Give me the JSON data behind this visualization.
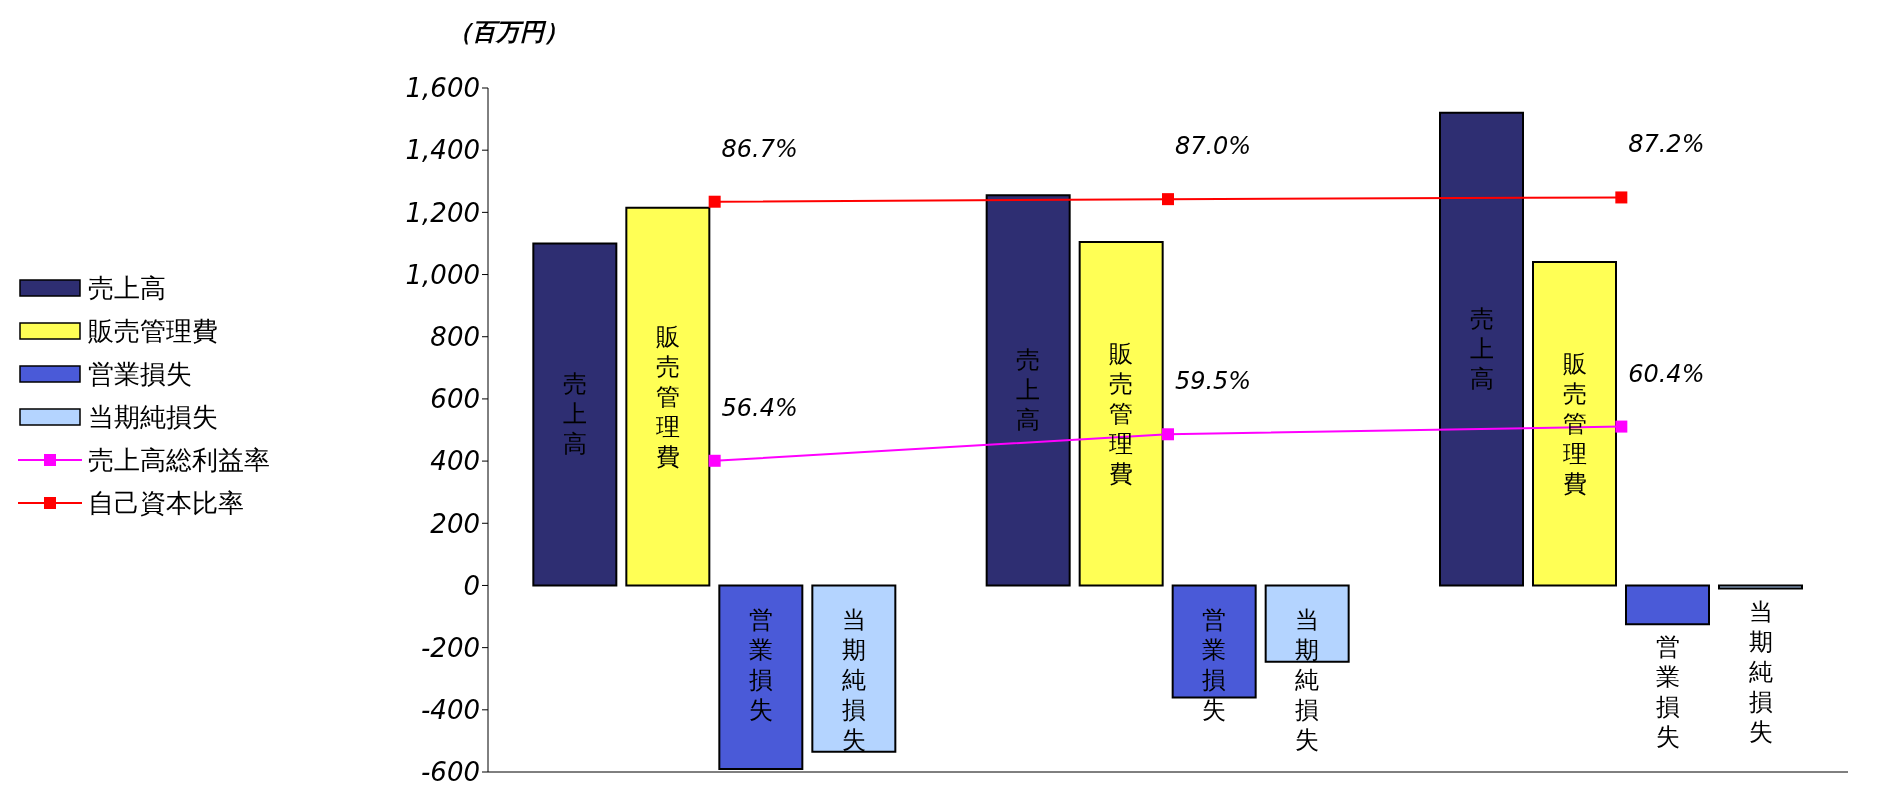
{
  "chart_data": {
    "type": "bar",
    "ylabel": "（百万円）",
    "categories": [
      null,
      null,
      null
    ],
    "series": [
      {
        "name": "売上高",
        "color": "#2e2e72",
        "values": [
          1100,
          1255,
          1520
        ]
      },
      {
        "name": "販売管理費",
        "color": "#ffff55",
        "values": [
          1215,
          1105,
          1040
        ]
      },
      {
        "name": "営業損失",
        "color": "#4a5ad8",
        "values": [
          -590,
          -360,
          -125
        ]
      },
      {
        "name": "当期純損失",
        "color": "#b4d4ff",
        "values": [
          -535,
          -245,
          -10
        ]
      },
      {
        "name": "売上高総利益率",
        "type": "line",
        "axis": "y2",
        "color": "#ff00ff",
        "values": [
          56.4,
          59.5,
          60.4
        ],
        "value_labels": [
          "56.4%",
          "59.5%",
          "60.4%"
        ]
      },
      {
        "name": "自己資本比率",
        "type": "line",
        "axis": "y2",
        "color": "#ff0000",
        "values": [
          86.7,
          87.0,
          87.2
        ],
        "value_labels": [
          "86.7%",
          "87.0%",
          "87.2%"
        ]
      }
    ],
    "ylim": [
      -600,
      1600
    ],
    "yticks": [
      {
        "value": -600,
        "label": "-600"
      },
      {
        "value": -400,
        "label": "-400"
      },
      {
        "value": -200,
        "label": "-200"
      },
      0,
      200,
      400,
      600,
      800,
      {
        "value": 1000,
        "label": "1,000"
      },
      {
        "value": 1200,
        "label": "1,200"
      },
      {
        "value": 1400,
        "label": "1,400"
      },
      {
        "value": 1600,
        "label": "1,600"
      }
    ],
    "y2lim": [
      20,
      100
    ],
    "tick_labels": "y",
    "legend": "left",
    "marker": "square",
    "grid": false
  }
}
